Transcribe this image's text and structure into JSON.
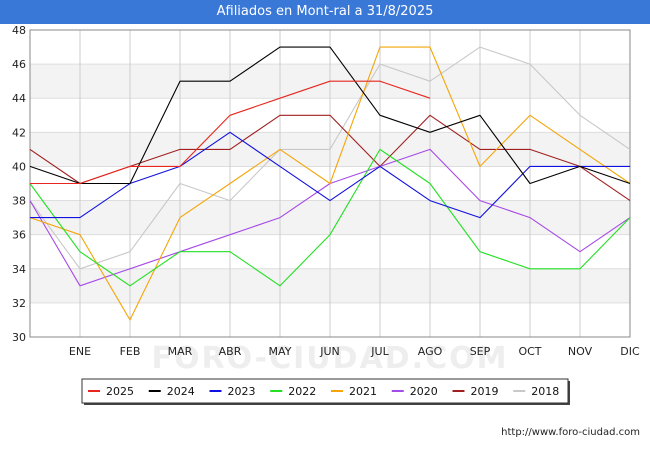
{
  "chart_data": {
    "type": "line",
    "title": "Afiliados en Mont-ral a 31/8/2025",
    "categories": [
      "",
      "ENE",
      "FEB",
      "MAR",
      "ABR",
      "MAY",
      "JUN",
      "JUL",
      "AGO",
      "SEP",
      "OCT",
      "NOV",
      "DIC"
    ],
    "ylim": [
      30,
      48
    ],
    "yticks": [
      30,
      32,
      34,
      36,
      38,
      40,
      42,
      44,
      46,
      48
    ],
    "grid": true,
    "legend_position": "bottom",
    "series": [
      {
        "name": "2025",
        "color": "#e8261e",
        "values": [
          39,
          39,
          40,
          40,
          43,
          44,
          45,
          45,
          44,
          null,
          null,
          null,
          null
        ]
      },
      {
        "name": "2024",
        "color": "#000000",
        "values": [
          40,
          39,
          39,
          45,
          45,
          47,
          47,
          43,
          42,
          43,
          39,
          40,
          39
        ]
      },
      {
        "name": "2023",
        "color": "#1010e0",
        "values": [
          37,
          37,
          39,
          40,
          42,
          40,
          38,
          40,
          38,
          37,
          40,
          40,
          40
        ]
      },
      {
        "name": "2022",
        "color": "#22e022",
        "values": [
          39,
          35,
          33,
          35,
          35,
          33,
          36,
          41,
          39,
          35,
          34,
          34,
          37
        ]
      },
      {
        "name": "2021",
        "color": "#f5a50a",
        "values": [
          37,
          36,
          31,
          37,
          39,
          41,
          39,
          47,
          47,
          40,
          43,
          41,
          39
        ]
      },
      {
        "name": "2020",
        "color": "#a64ae8",
        "values": [
          38,
          33,
          34,
          35,
          36,
          37,
          39,
          40,
          41,
          38,
          37,
          35,
          37
        ]
      },
      {
        "name": "2019",
        "color": "#a02020",
        "values": [
          41,
          39,
          40,
          41,
          41,
          43,
          43,
          40,
          43,
          41,
          41,
          40,
          38
        ]
      },
      {
        "name": "2018",
        "color": "#c8c8c8",
        "values": [
          38,
          34,
          35,
          39,
          38,
          41,
          41,
          46,
          45,
          47,
          46,
          43,
          41
        ]
      }
    ],
    "watermark": "FORO-CIUDAD.COM"
  },
  "source_url": "http://www.foro-ciudad.com"
}
